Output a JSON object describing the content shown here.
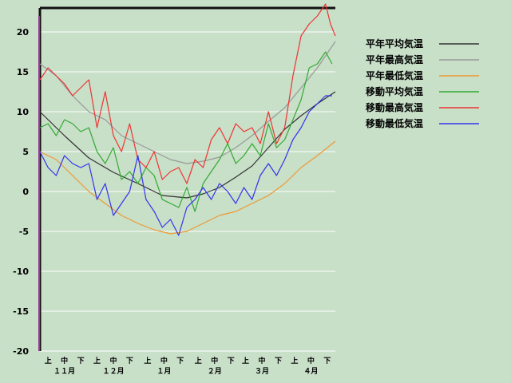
{
  "chart_data": {
    "type": "line",
    "ylim": [
      -20,
      23
    ],
    "y_ticks": [
      20,
      15,
      10,
      5,
      0,
      -5,
      -10,
      -15,
      -20
    ],
    "x_range_days": [
      0,
      181
    ],
    "x_minor_ticks": [
      {
        "label": "上",
        "day": 5
      },
      {
        "label": "中",
        "day": 15
      },
      {
        "label": "下",
        "day": 25
      },
      {
        "label": "上",
        "day": 35
      },
      {
        "label": "中",
        "day": 45
      },
      {
        "label": "下",
        "day": 55
      },
      {
        "label": "上",
        "day": 66
      },
      {
        "label": "中",
        "day": 76
      },
      {
        "label": "下",
        "day": 86
      },
      {
        "label": "上",
        "day": 97
      },
      {
        "label": "中",
        "day": 107
      },
      {
        "label": "下",
        "day": 117
      },
      {
        "label": "上",
        "day": 126
      },
      {
        "label": "中",
        "day": 136
      },
      {
        "label": "下",
        "day": 146
      },
      {
        "label": "上",
        "day": 156
      },
      {
        "label": "中",
        "day": 166
      },
      {
        "label": "下",
        "day": 176
      }
    ],
    "x_months": [
      {
        "label": "１１月",
        "day": 15
      },
      {
        "label": "１２月",
        "day": 45
      },
      {
        "label": "１月",
        "day": 76
      },
      {
        "label": "２月",
        "day": 107
      },
      {
        "label": "３月",
        "day": 136
      },
      {
        "label": "４月",
        "day": 166
      }
    ],
    "grid": true,
    "legend_position": "right",
    "series": [
      {
        "name": "平年平均気温",
        "color": "#333333",
        "x": [
          0,
          15,
          30,
          45,
          60,
          75,
          90,
          100,
          110,
          120,
          130,
          140,
          150,
          160,
          170,
          181
        ],
        "y": [
          10.0,
          7.0,
          4.2,
          2.4,
          1.0,
          -0.5,
          -0.8,
          -0.3,
          0.5,
          1.8,
          3.2,
          5.5,
          7.8,
          9.5,
          11.0,
          12.5
        ]
      },
      {
        "name": "平年最高気温",
        "color": "#999999",
        "x": [
          0,
          10,
          20,
          30,
          40,
          50,
          60,
          70,
          80,
          90,
          100,
          110,
          120,
          130,
          140,
          150,
          160,
          170,
          181
        ],
        "y": [
          16.0,
          14.5,
          12.0,
          10.0,
          9.0,
          7.0,
          6.0,
          5.0,
          4.0,
          3.5,
          3.8,
          4.3,
          5.5,
          7.0,
          8.8,
          10.5,
          13.0,
          15.5,
          18.8
        ]
      },
      {
        "name": "平年最低気温",
        "color": "#ee9933",
        "x": [
          0,
          10,
          20,
          30,
          40,
          50,
          60,
          70,
          80,
          90,
          100,
          110,
          120,
          130,
          140,
          150,
          160,
          170,
          181
        ],
        "y": [
          5.0,
          4.0,
          2.0,
          0.0,
          -1.5,
          -3.0,
          -4.0,
          -4.8,
          -5.3,
          -5.0,
          -4.0,
          -3.0,
          -2.5,
          -1.5,
          -0.5,
          1.0,
          3.0,
          4.5,
          6.3
        ]
      },
      {
        "name": "移動平均気温",
        "color": "#33aa33",
        "x": [
          0,
          5,
          10,
          15,
          20,
          25,
          30,
          35,
          40,
          45,
          50,
          55,
          60,
          65,
          70,
          75,
          80,
          85,
          90,
          95,
          100,
          105,
          110,
          115,
          120,
          125,
          130,
          135,
          140,
          145,
          150,
          155,
          160,
          165,
          170,
          175,
          179
        ],
        "y": [
          8.0,
          8.5,
          7.0,
          9.0,
          8.5,
          7.5,
          8.0,
          5.0,
          3.5,
          5.5,
          1.5,
          2.5,
          1.0,
          3.0,
          2.0,
          -1.0,
          -1.5,
          -2.0,
          0.5,
          -2.5,
          1.0,
          2.5,
          4.0,
          6.0,
          3.5,
          4.5,
          6.0,
          4.5,
          8.5,
          5.5,
          6.5,
          9.0,
          11.5,
          15.5,
          16.0,
          17.5,
          16.0
        ]
      },
      {
        "name": "移動最高気温",
        "color": "#ee3333",
        "x": [
          0,
          5,
          10,
          15,
          20,
          25,
          30,
          35,
          40,
          45,
          50,
          55,
          60,
          65,
          70,
          75,
          80,
          85,
          90,
          95,
          100,
          105,
          110,
          115,
          120,
          125,
          130,
          135,
          140,
          145,
          150,
          155,
          160,
          165,
          170,
          175,
          178,
          181
        ],
        "y": [
          14.0,
          15.5,
          14.5,
          13.5,
          12.0,
          13.0,
          14.0,
          8.0,
          12.5,
          7.0,
          5.0,
          8.5,
          4.0,
          3.0,
          5.0,
          1.5,
          2.5,
          3.0,
          1.0,
          4.0,
          3.0,
          6.5,
          8.0,
          6.0,
          8.5,
          7.5,
          8.0,
          6.0,
          10.0,
          6.0,
          8.0,
          14.5,
          19.5,
          21.0,
          22.0,
          23.5,
          21.0,
          19.5
        ]
      },
      {
        "name": "移動最低気温",
        "color": "#3333ee",
        "x": [
          0,
          5,
          10,
          15,
          20,
          25,
          30,
          35,
          40,
          45,
          50,
          55,
          60,
          65,
          70,
          75,
          80,
          85,
          90,
          95,
          100,
          105,
          110,
          115,
          120,
          125,
          130,
          135,
          140,
          145,
          150,
          155,
          160,
          165,
          170,
          175,
          179
        ],
        "y": [
          5.0,
          3.0,
          2.0,
          4.5,
          3.5,
          3.0,
          3.5,
          -1.0,
          1.0,
          -3.0,
          -1.5,
          0.0,
          4.5,
          -1.0,
          -2.5,
          -4.5,
          -3.5,
          -5.5,
          -2.0,
          -1.0,
          0.5,
          -1.0,
          1.0,
          0.0,
          -1.5,
          0.5,
          -1.0,
          2.0,
          3.5,
          2.0,
          4.0,
          6.5,
          8.0,
          10.0,
          11.0,
          12.0,
          12.0
        ]
      }
    ]
  }
}
